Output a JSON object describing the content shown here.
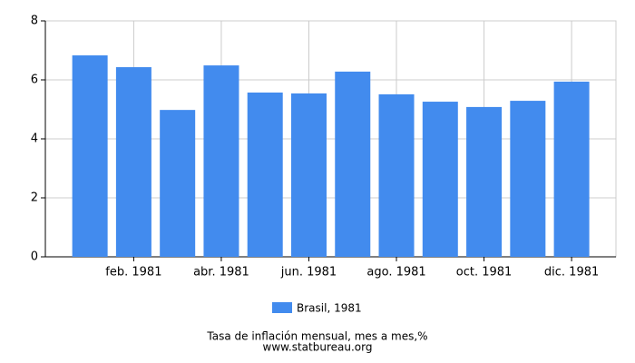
{
  "chart_data": {
    "type": "bar",
    "categories": [
      null,
      "feb. 1981",
      null,
      "abr. 1981",
      null,
      "jun. 1981",
      null,
      "ago. 1981",
      null,
      "oct. 1981",
      null,
      "dic. 1981"
    ],
    "series": [
      {
        "name": "Brasil, 1981",
        "color": "#428bee",
        "values": [
          6.83,
          6.43,
          4.98,
          6.49,
          5.57,
          5.54,
          6.28,
          5.51,
          5.26,
          5.08,
          5.29,
          5.94
        ]
      }
    ],
    "ylim": [
      0,
      8
    ],
    "yticks": [
      0,
      2,
      4,
      6,
      8
    ],
    "grid": true,
    "caption": "Tasa de inflación mensual, mes a mes,%",
    "source": "www.statbureau.org"
  }
}
